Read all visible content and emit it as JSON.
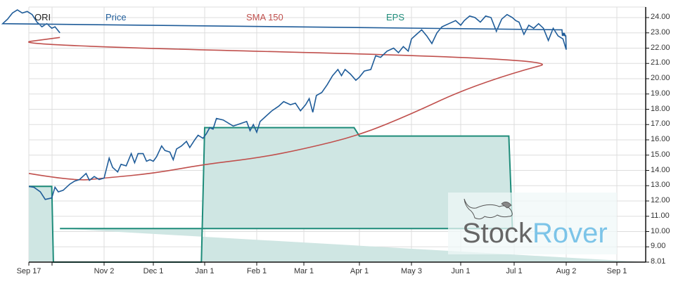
{
  "chart_data": {
    "type": "line",
    "title": "",
    "ticker": "ORI",
    "legend": [
      {
        "name": "Price",
        "color": "#1f5c99"
      },
      {
        "name": "SMA 150",
        "color": "#c0504d"
      },
      {
        "name": "EPS",
        "color": "#1e8c7a"
      }
    ],
    "xlabel": "",
    "ylabel": "",
    "y_axis_position": "right",
    "ylim": [
      8.01,
      24.6
    ],
    "yticks": [
      "24.00",
      "23.00",
      "22.00",
      "21.00",
      "20.00",
      "19.00",
      "18.00",
      "17.00",
      "16.00",
      "15.00",
      "14.00",
      "13.00",
      "12.00",
      "11.00",
      "10.00",
      "9.00",
      "8.01"
    ],
    "xticks": [
      "Sep 17",
      "Nov 2",
      "Dec 1",
      "Jan 1",
      "Feb 1",
      "Mar 1",
      "Apr 1",
      "May 3",
      "Jun 1",
      "Jul 1",
      "Aug 2",
      "Sep 1"
    ],
    "grid": true,
    "series": [
      {
        "name": "Price",
        "points": [
          [
            "Sep 17",
            12.95
          ],
          [
            "Sep 20",
            12.9
          ],
          [
            "Sep 24",
            12.6
          ],
          [
            "Sep 27",
            12.1
          ],
          [
            "Oct 1",
            12.2
          ],
          [
            "Oct 3",
            12.9
          ],
          [
            "Oct 5",
            12.6
          ],
          [
            "Oct 8",
            12.7
          ],
          [
            "Oct 12",
            13.1
          ],
          [
            "Oct 15",
            13.3
          ],
          [
            "Oct 18",
            13.4
          ],
          [
            "Oct 22",
            13.8
          ],
          [
            "Oct 24",
            13.35
          ],
          [
            "Oct 27",
            13.6
          ],
          [
            "Oct 30",
            13.4
          ],
          [
            "Nov 2",
            13.5
          ],
          [
            "Nov 5",
            14.8
          ],
          [
            "Nov 7",
            14.2
          ],
          [
            "Nov 10",
            13.9
          ],
          [
            "Nov 12",
            14.4
          ],
          [
            "Nov 15",
            14.3
          ],
          [
            "Nov 18",
            15.1
          ],
          [
            "Nov 20",
            14.5
          ],
          [
            "Nov 22",
            15.1
          ],
          [
            "Nov 25",
            15.1
          ],
          [
            "Nov 27",
            14.6
          ],
          [
            "Nov 29",
            14.7
          ],
          [
            "Dec 1",
            14.6
          ],
          [
            "Dec 3",
            14.9
          ],
          [
            "Dec 6",
            15.6
          ],
          [
            "Dec 8",
            15.3
          ],
          [
            "Dec 11",
            15.2
          ],
          [
            "Dec 13",
            14.7
          ],
          [
            "Dec 15",
            15.4
          ],
          [
            "Dec 18",
            15.6
          ],
          [
            "Dec 21",
            15.9
          ],
          [
            "Dec 23",
            15.5
          ],
          [
            "Dec 26",
            16.0
          ],
          [
            "Dec 28",
            16.3
          ],
          [
            "Dec 31",
            16.1
          ],
          [
            "Jan 2",
            16.4
          ],
          [
            "Jan 4",
            16.8
          ],
          [
            "Jan 6",
            16.7
          ],
          [
            "Jan 8",
            17.4
          ],
          [
            "Jan 12",
            17.3
          ],
          [
            "Jan 18",
            16.9
          ],
          [
            "Jan 26",
            17.2
          ],
          [
            "Jan 28",
            16.6
          ],
          [
            "Jan 30",
            17.0
          ],
          [
            "Feb 1",
            16.5
          ],
          [
            "Feb 3",
            17.2
          ],
          [
            "Feb 6",
            17.5
          ],
          [
            "Feb 10",
            17.9
          ],
          [
            "Feb 14",
            18.2
          ],
          [
            "Feb 17",
            18.5
          ],
          [
            "Feb 21",
            18.3
          ],
          [
            "Feb 24",
            18.4
          ],
          [
            "Feb 27",
            17.9
          ],
          [
            "Mar 2",
            18.3
          ],
          [
            "Mar 4",
            18.7
          ],
          [
            "Mar 6",
            17.8
          ],
          [
            "Mar 8",
            18.9
          ],
          [
            "Mar 11",
            19.1
          ],
          [
            "Mar 14",
            19.6
          ],
          [
            "Mar 17",
            20.2
          ],
          [
            "Mar 20",
            20.6
          ],
          [
            "Mar 22",
            20.2
          ],
          [
            "Mar 24",
            20.6
          ],
          [
            "Mar 27",
            20.3
          ],
          [
            "Mar 30",
            19.9
          ],
          [
            "Apr 1",
            20.1
          ],
          [
            "Apr 4",
            20.5
          ],
          [
            "Apr 8",
            20.6
          ],
          [
            "Apr 11",
            21.5
          ],
          [
            "Apr 14",
            21.4
          ],
          [
            "Apr 18",
            21.8
          ],
          [
            "Apr 22",
            22.0
          ],
          [
            "Apr 25",
            21.7
          ],
          [
            "Apr 28",
            22.1
          ],
          [
            "May 1",
            21.8
          ],
          [
            "May 3",
            22.6
          ],
          [
            "May 6",
            22.9
          ],
          [
            "May 9",
            23.2
          ],
          [
            "May 12",
            22.8
          ],
          [
            "May 15",
            22.3
          ],
          [
            "May 18",
            23.0
          ],
          [
            "May 21",
            23.4
          ],
          [
            "May 25",
            23.6
          ],
          [
            "May 29",
            23.8
          ],
          [
            "Jun 1",
            23.5
          ],
          [
            "Jun 3",
            23.8
          ],
          [
            "Jun 6",
            24.1
          ],
          [
            "Jun 9",
            24.0
          ],
          [
            "Jun 12",
            23.7
          ],
          [
            "Jun 15",
            24.1
          ],
          [
            "Jun 18",
            24.0
          ],
          [
            "Jun 21",
            23.1
          ],
          [
            "Jun 24",
            23.9
          ],
          [
            "Jun 27",
            24.2
          ],
          [
            "Jun 30",
            24.0
          ],
          [
            "Jul 2",
            23.8
          ],
          [
            "Jul 4",
            23.7
          ],
          [
            "Jul 7",
            22.9
          ],
          [
            "Jul 10",
            23.5
          ],
          [
            "Jul 13",
            23.3
          ],
          [
            "Jul 16",
            23.6
          ],
          [
            "Jul 19",
            23.3
          ],
          [
            "Jul 22",
            22.5
          ],
          [
            "Jul 25",
            23.3
          ],
          [
            "Jul 28",
            22.8
          ],
          [
            "Jul 31",
            22.6
          ],
          [
            "Aug 2",
            21.9
          ],
          [
            "Aug 5",
            22.8
          ],
          [
            "Aug 8",
            22.8
          ],
          [
            "Aug 12",
            22.9
          ],
          [
            "Aug 15",
            22.8
          ],
          [
            "Aug 18",
            23.0
          ],
          [
            "Aug 21",
            22.9
          ],
          [
            "Aug 24",
            23.0
          ],
          [
            "Aug 27",
            22.8
          ],
          [
            "Aug 30",
            23.2
          ],
          [
            "Sep 1",
            23.6
          ],
          [
            "Sep 4",
            23.9
          ],
          [
            "Sep 7",
            24.3
          ],
          [
            "Sep 10",
            24.5
          ],
          [
            "Sep 13",
            24.3
          ],
          [
            "Sep 16",
            24.4
          ],
          [
            "Sep 19",
            24.2
          ],
          [
            "Sep 22",
            23.7
          ],
          [
            "Sep 25",
            23.4
          ],
          [
            "Sep 28",
            23.6
          ],
          [
            "Oct 1",
            23.3
          ],
          [
            "Oct 3",
            23.4
          ],
          [
            "Oct 6",
            23.0
          ]
        ]
      },
      {
        "name": "SMA 150",
        "points": [
          [
            "Sep 17",
            13.8
          ],
          [
            "Oct 15",
            13.3
          ],
          [
            "Nov 2",
            13.5
          ],
          [
            "Dec 1",
            13.8
          ],
          [
            "Jan 1",
            14.4
          ],
          [
            "Feb 1",
            14.8
          ],
          [
            "Mar 1",
            15.4
          ],
          [
            "Apr 1",
            16.3
          ],
          [
            "May 3",
            17.7
          ],
          [
            "Jun 1",
            19.2
          ],
          [
            "Jul 1",
            20.4
          ],
          [
            "Aug 2",
            21.3
          ],
          [
            "Sep 1",
            22.2
          ],
          [
            "Oct 6",
            22.7
          ]
        ]
      },
      {
        "name": "EPS",
        "type": "step-area",
        "points": [
          [
            "Sep 17",
            12.95
          ],
          [
            "Oct 1",
            12.95
          ],
          [
            "Oct 2",
            8.01
          ],
          [
            "Dec 30",
            8.01
          ],
          [
            "Jan 1",
            16.8
          ],
          [
            "Mar 29",
            16.8
          ],
          [
            "Apr 1",
            16.25
          ],
          [
            "Jun 28",
            16.25
          ],
          [
            "Jun 30",
            10.2
          ],
          [
            "Oct 6",
            10.2
          ]
        ]
      }
    ]
  },
  "legend": {
    "ticker": "ORI",
    "price": "Price",
    "sma": "SMA 150",
    "eps": "EPS"
  },
  "watermark": {
    "stock": "Stock",
    "rover": "Rover"
  }
}
